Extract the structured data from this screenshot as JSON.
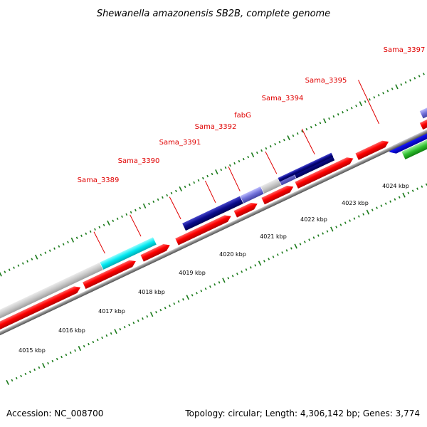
{
  "title": "Shewanella amazonensis SB2B, complete genome",
  "footer": {
    "accession": "Accession: NC_008700",
    "summary": "Topology: circular; Length: 4,306,142 bp; Genes: 3,774"
  },
  "gene_labels": [
    "Sama_3389",
    "Sama_3390",
    "Sama_3391",
    "Sama_3392",
    "fabG",
    "Sama_3394",
    "Sama_3395",
    "Sama_3397"
  ],
  "kbp_labels": [
    "4015 kbp",
    "4016 kbp",
    "4017 kbp",
    "4018 kbp",
    "4019 kbp",
    "4020 kbp",
    "4021 kbp",
    "4022 kbp",
    "4023 kbp",
    "4024 kbp"
  ],
  "colors": {
    "cds": "#ff0000",
    "gene_label": "#e00000",
    "tick": "#1a7a1a",
    "backbone": "#888888",
    "gray_feature": "#c8c8c8",
    "cyan_feature": "#00e8f0",
    "navy_feature": "#0a0a8a",
    "lavender_feature": "#7070d8",
    "blue_feature": "#1010f0",
    "green_feature": "#30c030"
  }
}
